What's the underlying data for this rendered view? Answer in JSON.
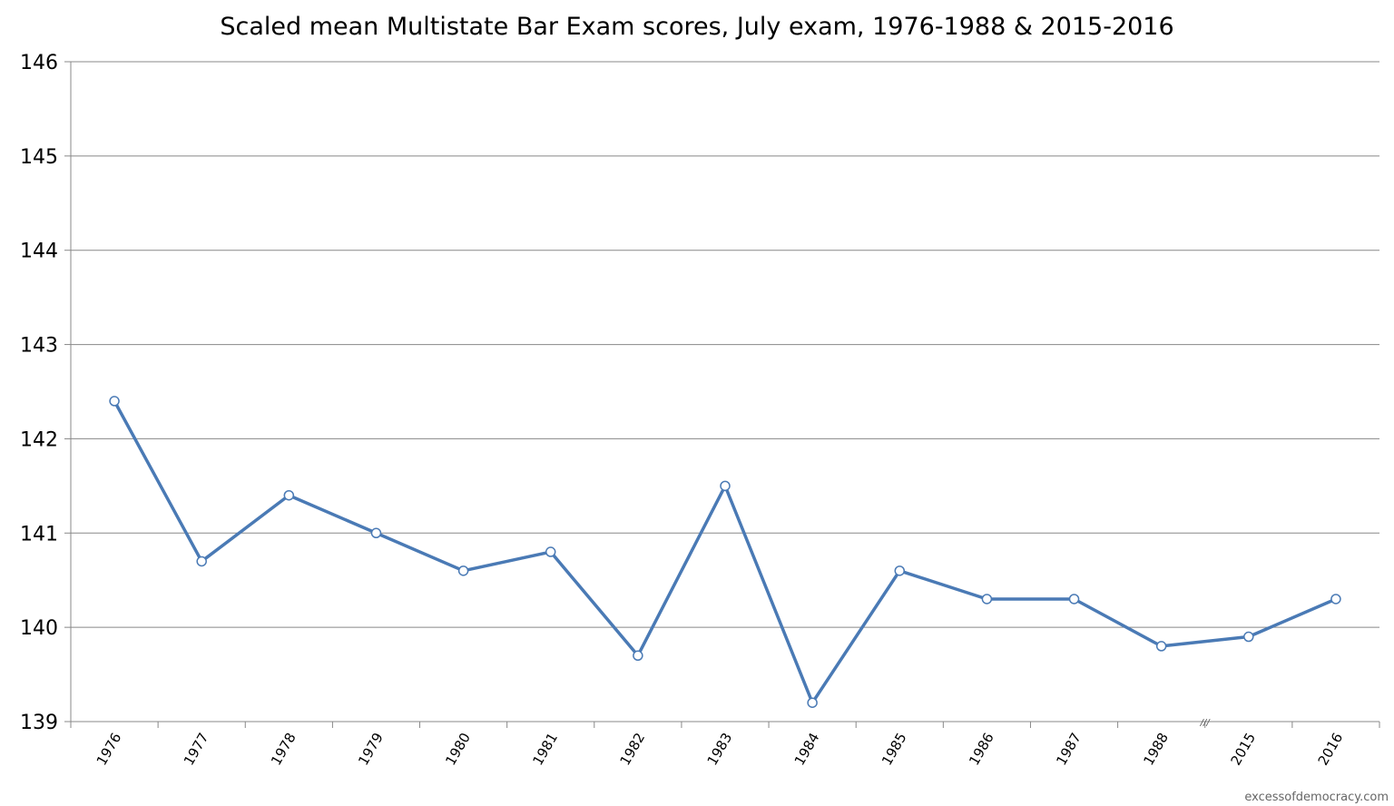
{
  "chart_data": {
    "type": "line",
    "title": "Scaled mean Multistate Bar Exam scores, July exam, 1976-1988 & 2015-2016",
    "xlabel": "",
    "ylabel": "",
    "categories": [
      "1976",
      "1977",
      "1978",
      "1979",
      "1980",
      "1981",
      "1982",
      "1983",
      "1984",
      "1985",
      "1986",
      "1987",
      "1988",
      "2015",
      "2016"
    ],
    "series": [
      {
        "values": [
          142.4,
          140.7,
          141.4,
          141.0,
          140.6,
          140.8,
          139.7,
          141.5,
          139.2,
          140.6,
          140.3,
          140.3,
          139.8,
          139.9,
          140.3
        ]
      }
    ],
    "ylim": [
      139,
      146
    ],
    "yticks": [
      "139",
      "140",
      "141",
      "142",
      "143",
      "144",
      "145",
      "146"
    ],
    "grid": true,
    "legend": "none",
    "axis_break_marker": "///",
    "line_color": "#4a7ab5",
    "marker_fill": "#ffffff",
    "gridline_color": "#888888"
  },
  "watermark": "excessofdemocracy.com"
}
